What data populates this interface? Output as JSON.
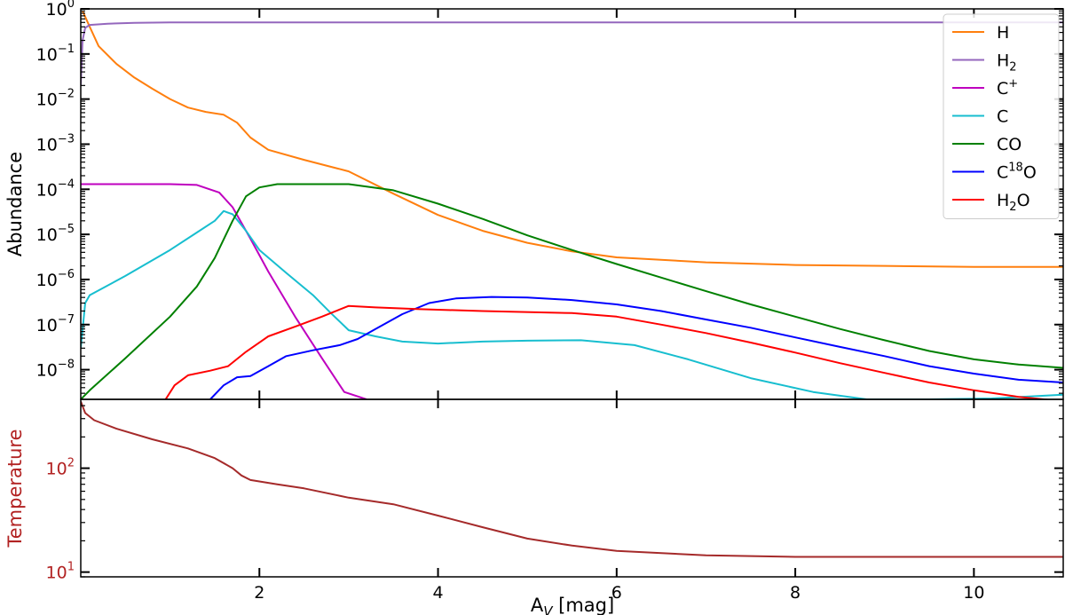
{
  "chart_data": [
    {
      "type": "line",
      "panel": "abundance",
      "ylabel": "Abundance",
      "yscale": "log",
      "xlim": [
        0,
        11
      ],
      "ylim": [
        2.2e-09,
        1.0
      ],
      "y_ticks": [
        {
          "value": 1,
          "base": "10",
          "exp": "0"
        },
        {
          "value": 0.1,
          "base": "10",
          "exp": "−1"
        },
        {
          "value": 0.01,
          "base": "10",
          "exp": "−2"
        },
        {
          "value": 0.001,
          "base": "10",
          "exp": "−3"
        },
        {
          "value": 0.0001,
          "base": "10",
          "exp": "−4"
        },
        {
          "value": 1e-05,
          "base": "10",
          "exp": "−5"
        },
        {
          "value": 1e-06,
          "base": "10",
          "exp": "−6"
        },
        {
          "value": 1e-07,
          "base": "10",
          "exp": "−7"
        },
        {
          "value": 1e-08,
          "base": "10",
          "exp": "−8"
        }
      ],
      "legend_position": "top-right",
      "series": [
        {
          "name": "H",
          "label": {
            "main": "H",
            "sub": "",
            "sup": "",
            "tail": ""
          },
          "color": "#ff7f0e",
          "points": [
            [
              0.02,
              0.9
            ],
            [
              0.1,
              0.4
            ],
            [
              0.2,
              0.15
            ],
            [
              0.4,
              0.06
            ],
            [
              0.6,
              0.03
            ],
            [
              0.8,
              0.017
            ],
            [
              1.0,
              0.01
            ],
            [
              1.2,
              0.0065
            ],
            [
              1.4,
              0.0052
            ],
            [
              1.6,
              0.0045
            ],
            [
              1.75,
              0.003
            ],
            [
              1.9,
              0.0014
            ],
            [
              2.1,
              0.00075
            ],
            [
              2.5,
              0.00045
            ],
            [
              3.0,
              0.00025
            ],
            [
              3.5,
              8e-05
            ],
            [
              4.0,
              2.7e-05
            ],
            [
              4.5,
              1.2e-05
            ],
            [
              5.0,
              6.5e-06
            ],
            [
              5.5,
              4.2e-06
            ],
            [
              6.0,
              3.1e-06
            ],
            [
              7.0,
              2.4e-06
            ],
            [
              8.0,
              2.1e-06
            ],
            [
              9.0,
              2e-06
            ],
            [
              10.0,
              1.9e-06
            ],
            [
              11.0,
              1.9e-06
            ]
          ]
        },
        {
          "name": "H2",
          "label": {
            "main": "H",
            "sub": "2",
            "sup": "",
            "tail": ""
          },
          "color": "#9467bd",
          "points": [
            [
              0.0,
              0.02
            ],
            [
              0.02,
              0.2
            ],
            [
              0.05,
              0.38
            ],
            [
              0.1,
              0.44
            ],
            [
              0.3,
              0.47
            ],
            [
              0.6,
              0.49
            ],
            [
              1.0,
              0.5
            ],
            [
              2.0,
              0.5
            ],
            [
              11.0,
              0.5
            ]
          ]
        },
        {
          "name": "C+",
          "label": {
            "main": "C",
            "sub": "",
            "sup": "+",
            "tail": ""
          },
          "color": "#bf00bf",
          "points": [
            [
              0.0,
              0.00013
            ],
            [
              0.5,
              0.00013
            ],
            [
              1.0,
              0.00013
            ],
            [
              1.3,
              0.000125
            ],
            [
              1.55,
              8.5e-05
            ],
            [
              1.7,
              4e-05
            ],
            [
              1.9,
              8e-06
            ],
            [
              2.1,
              1.5e-06
            ],
            [
              2.4,
              1.5e-07
            ],
            [
              2.7,
              1.8e-08
            ],
            [
              2.95,
              3.2e-09
            ],
            [
              3.2,
              2.2e-09
            ]
          ]
        },
        {
          "name": "C",
          "label": {
            "main": "C",
            "sub": "",
            "sup": "",
            "tail": ""
          },
          "color": "#17becf",
          "points": [
            [
              0.0,
              3e-08
            ],
            [
              0.05,
              3e-07
            ],
            [
              0.1,
              4.5e-07
            ],
            [
              0.5,
              1.2e-06
            ],
            [
              1.0,
              4.5e-06
            ],
            [
              1.3,
              1.1e-05
            ],
            [
              1.5,
              2e-05
            ],
            [
              1.6,
              3.3e-05
            ],
            [
              1.7,
              2.8e-05
            ],
            [
              1.85,
              1.2e-05
            ],
            [
              2.0,
              4.5e-06
            ],
            [
              2.3,
              1.4e-06
            ],
            [
              2.6,
              4.5e-07
            ],
            [
              2.8,
              1.8e-07
            ],
            [
              3.0,
              7.5e-08
            ],
            [
              3.3,
              5.5e-08
            ],
            [
              3.6,
              4.2e-08
            ],
            [
              4.0,
              3.8e-08
            ],
            [
              4.5,
              4.2e-08
            ],
            [
              5.0,
              4.4e-08
            ],
            [
              5.6,
              4.5e-08
            ],
            [
              6.2,
              3.5e-08
            ],
            [
              6.8,
              1.7e-08
            ],
            [
              7.5,
              6.5e-09
            ],
            [
              8.2,
              3.2e-09
            ],
            [
              8.8,
              2.2e-09
            ],
            [
              9.5,
              2.2e-09
            ],
            [
              10.2,
              2.3e-09
            ],
            [
              11.0,
              2.8e-09
            ]
          ]
        },
        {
          "name": "CO",
          "label": {
            "main": "CO",
            "sub": "",
            "sup": "",
            "tail": ""
          },
          "color": "#008000",
          "points": [
            [
              0.0,
              2.2e-09
            ],
            [
              0.1,
              3.5e-09
            ],
            [
              0.5,
              1.8e-08
            ],
            [
              1.0,
              1.5e-07
            ],
            [
              1.3,
              7e-07
            ],
            [
              1.5,
              3e-06
            ],
            [
              1.7,
              2e-05
            ],
            [
              1.85,
              7e-05
            ],
            [
              2.0,
              0.00011
            ],
            [
              2.2,
              0.00013
            ],
            [
              2.6,
              0.00013
            ],
            [
              3.0,
              0.00013
            ],
            [
              3.5,
              9.5e-05
            ],
            [
              4.0,
              4.8e-05
            ],
            [
              4.5,
              2.2e-05
            ],
            [
              5.0,
              9.5e-06
            ],
            [
              5.5,
              4.5e-06
            ],
            [
              6.0,
              2.2e-06
            ],
            [
              6.5,
              1.1e-06
            ],
            [
              7.0,
              5.5e-07
            ],
            [
              7.5,
              2.8e-07
            ],
            [
              8.0,
              1.5e-07
            ],
            [
              8.5,
              8e-08
            ],
            [
              9.0,
              4.5e-08
            ],
            [
              9.5,
              2.6e-08
            ],
            [
              10.0,
              1.7e-08
            ],
            [
              10.5,
              1.3e-08
            ],
            [
              11.0,
              1.1e-08
            ]
          ]
        },
        {
          "name": "C18O",
          "label": {
            "main": "C",
            "sub": "",
            "sup": "18",
            "tail": "O"
          },
          "color": "#0000ff",
          "points": [
            [
              1.45,
              2.2e-09
            ],
            [
              1.6,
              4.5e-09
            ],
            [
              1.75,
              6.8e-09
            ],
            [
              1.9,
              7.2e-09
            ],
            [
              2.1,
              1.2e-08
            ],
            [
              2.3,
              2e-08
            ],
            [
              2.6,
              2.7e-08
            ],
            [
              2.9,
              3.5e-08
            ],
            [
              3.1,
              4.8e-08
            ],
            [
              3.3,
              8e-08
            ],
            [
              3.6,
              1.7e-07
            ],
            [
              3.9,
              3e-07
            ],
            [
              4.2,
              3.8e-07
            ],
            [
              4.6,
              4.1e-07
            ],
            [
              5.0,
              4e-07
            ],
            [
              5.5,
              3.5e-07
            ],
            [
              6.0,
              2.8e-07
            ],
            [
              6.5,
              2e-07
            ],
            [
              7.0,
              1.3e-07
            ],
            [
              7.5,
              8.5e-08
            ],
            [
              8.0,
              5.2e-08
            ],
            [
              8.5,
              3.2e-08
            ],
            [
              9.0,
              2e-08
            ],
            [
              9.5,
              1.2e-08
            ],
            [
              10.0,
              8.2e-09
            ],
            [
              10.5,
              6e-09
            ],
            [
              11.0,
              5.2e-09
            ]
          ]
        },
        {
          "name": "H2O",
          "label": {
            "main": "H",
            "sub": "2",
            "sup": "",
            "tail": "O"
          },
          "color": "#ff0000",
          "points": [
            [
              0.95,
              2.2e-09
            ],
            [
              1.05,
              4.5e-09
            ],
            [
              1.2,
              7.5e-09
            ],
            [
              1.45,
              9.5e-09
            ],
            [
              1.65,
              1.2e-08
            ],
            [
              1.85,
              2.5e-08
            ],
            [
              2.1,
              5.5e-08
            ],
            [
              2.4,
              9e-08
            ],
            [
              2.7,
              1.5e-07
            ],
            [
              3.0,
              2.6e-07
            ],
            [
              3.3,
              2.4e-07
            ],
            [
              3.8,
              2.2e-07
            ],
            [
              4.5,
              2e-07
            ],
            [
              5.5,
              1.8e-07
            ],
            [
              6.0,
              1.5e-07
            ],
            [
              6.5,
              1e-07
            ],
            [
              7.0,
              6.5e-08
            ],
            [
              7.5,
              4e-08
            ],
            [
              8.0,
              2.4e-08
            ],
            [
              8.5,
              1.4e-08
            ],
            [
              9.0,
              8.5e-09
            ],
            [
              9.5,
              5.2e-09
            ],
            [
              10.0,
              3.5e-09
            ],
            [
              10.5,
              2.5e-09
            ],
            [
              11.0,
              2e-09
            ]
          ]
        }
      ]
    },
    {
      "type": "line",
      "panel": "temperature",
      "ylabel": "Temperature",
      "yscale": "log",
      "xlabel": {
        "main": "A",
        "sub": "V",
        "tail": " [mag]"
      },
      "xlim": [
        0,
        11
      ],
      "ylim": [
        9,
        460
      ],
      "x_ticks": [
        "2",
        "4",
        "6",
        "8",
        "10"
      ],
      "x_tick_values": [
        2,
        4,
        6,
        8,
        10
      ],
      "y_ticks": [
        {
          "value": 100,
          "base": "10",
          "exp": "2"
        },
        {
          "value": 10,
          "base": "10",
          "exp": "1"
        }
      ],
      "label_color": "#b22222",
      "series": [
        {
          "name": "Temperature",
          "color": "#a52a2a",
          "points": [
            [
              0.0,
              440
            ],
            [
              0.05,
              340
            ],
            [
              0.15,
              290
            ],
            [
              0.4,
              240
            ],
            [
              0.8,
              190
            ],
            [
              1.2,
              155
            ],
            [
              1.5,
              125
            ],
            [
              1.7,
              100
            ],
            [
              1.8,
              85
            ],
            [
              1.9,
              77
            ],
            [
              2.2,
              70
            ],
            [
              2.5,
              64
            ],
            [
              3.0,
              52
            ],
            [
              3.5,
              45
            ],
            [
              4.0,
              35
            ],
            [
              4.5,
              27
            ],
            [
              5.0,
              21
            ],
            [
              5.5,
              18
            ],
            [
              6.0,
              16
            ],
            [
              7.0,
              14.5
            ],
            [
              8.0,
              14
            ],
            [
              9.0,
              14
            ],
            [
              10.0,
              14
            ],
            [
              11.0,
              14
            ]
          ]
        }
      ]
    }
  ]
}
